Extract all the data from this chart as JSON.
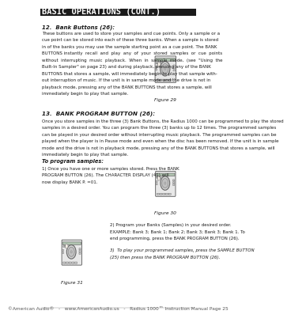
{
  "bg_color": "#ffffff",
  "header_bg": "#1a1a1a",
  "header_text": "BASIC OPERATIONS (CONT.)",
  "header_text_color": "#ffffff",
  "header_font_size": 7.5,
  "body_text_color": "#1a1a1a",
  "footer_text": "©American Audio®   -   www.AmericanAudio.us   -   Radius 1000™ Instruction Manual Page 25",
  "footer_font_size": 4.2,
  "section12_title": "12.  Bank Buttons (26):",
  "section12_body": "These buttons are used to store your samples and cue points. Only a sample or a\ncue point can be stored into each of these three banks. When a sample is stored\nin of the banks you may use the sample starting point as a cue point. The BANK\nBUTTONS instantly  recall  and  play  any  of  your  stored  samples  or  cue  points\nwithout  interrupting  music  playback.  When  in  sample  mode,  (see  \"Using  the\nBuilt-In Sampler\" on page 23) and during playback, pressing any of the BANK\nBUTTONS that stores a sample, will immediately begin to play that sample with-\nout interruption of music. If the unit is in sample mode and the drive is not in\nplayback mode, pressing any of the BANK BUTTONS that stores a sample, will\nimmediately begin to play that sample.",
  "fig29_label": "Figure 29",
  "section13_title": "13.  BANK PROGRAM BUTTON (26):",
  "section13_body": "Once you store samples in the three (3) Bank Buttons, the Radius 1000 can be programmed to play the stored\nsamples in a desired order. You can program the three (3) banks up to 12 times. The programmed samples\ncan be played in your desired order without interrupting music playback. The programmed samples can be\nplayed when the player is in Pause mode and even when the disc has been removed. If the unit is in sample\nmode and the drive is not in playback mode, pressing any of the BANK BUTTONS that stores a sample, will\nimmediately begin to play that sample.",
  "program_title": "To program samples:",
  "program_step1": "1) Once you have one or more samples stored. Press the BANK\nPROGRAM BUTTON (26). The CHARACTER DISPLAY (41) will\nnow display BANK P. =01.",
  "fig30_label": "Figure 30",
  "program_step2": "2) Program your Banks (Samples) in your desired order.\nEXAMPLE: Bank 3; Bank 1; Bank 2; Bank 3; Bank 3; Bank 1. To\nend programming, press the BANK PROGRAM BUTTON (26).",
  "program_step3": "3)  To play your programmed samples, press the SAMPLE BUTTON\n(25) then press the BANK PROGRAM BUTTON (26).",
  "fig31_label": "Figure 31"
}
